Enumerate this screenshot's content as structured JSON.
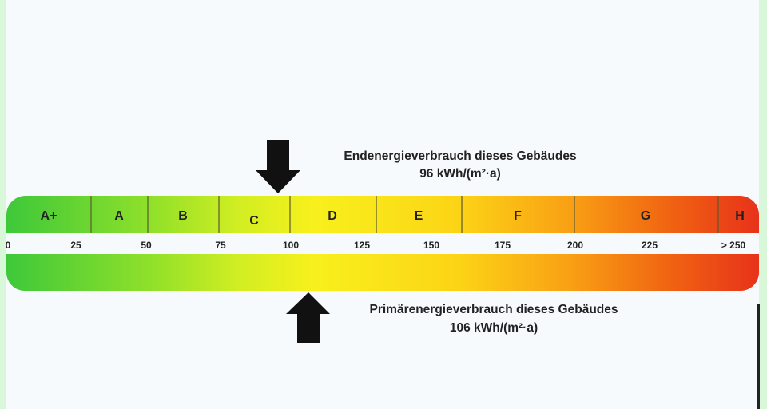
{
  "classes": [
    {
      "label": "A+",
      "from": 0,
      "to": 30
    },
    {
      "label": "A",
      "from": 30,
      "to": 50
    },
    {
      "label": "B",
      "from": 50,
      "to": 75
    },
    {
      "label": "C",
      "from": 75,
      "to": 100,
      "highlighted": true
    },
    {
      "label": "D",
      "from": 100,
      "to": 130
    },
    {
      "label": "E",
      "from": 130,
      "to": 160
    },
    {
      "label": "F",
      "from": 160,
      "to": 200
    },
    {
      "label": "G",
      "from": 200,
      "to": 250
    },
    {
      "label": "H",
      "from": 250,
      "to": 265
    }
  ],
  "ticks": [
    "0",
    "25",
    "50",
    "75",
    "100",
    "125",
    "150",
    "175",
    "200",
    "225",
    "> 250"
  ],
  "final_energy": {
    "title": "Endenergieverbrauch dieses Gebäudes",
    "value_text": "96 kWh/(m²·a)",
    "value": 96
  },
  "primary_energy": {
    "title": "Primärenergieverbrauch dieses Gebäudes",
    "value_text": "106 kWh/(m²·a)",
    "value": 106
  },
  "colors": {
    "green": "#3ec83a",
    "yellow": "#f8f01c",
    "orange": "#f9a014",
    "red": "#e8321a"
  }
}
